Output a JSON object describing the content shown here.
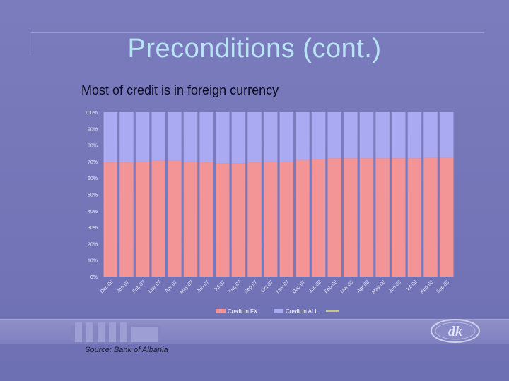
{
  "slide": {
    "title": "Preconditions (cont.)",
    "subtitle": "Most of credit is in foreign currency",
    "source": "Source: Bank of Albania"
  },
  "colors": {
    "fx": "#f39496",
    "all": "#aaaaf2",
    "title": "#b9e4f5",
    "background": "#7778ba"
  },
  "chart_data": {
    "type": "bar",
    "stacked": true,
    "percent_stacked": true,
    "categories": [
      "Dec-06",
      "Jan-07",
      "Feb-07",
      "Mar-07",
      "Apr-07",
      "May-07",
      "Jun-07",
      "Jul-07",
      "Aug-07",
      "Sep-07",
      "Oct-07",
      "Nov-07",
      "Dec-07",
      "Jan-08",
      "Feb-08",
      "Mar-08",
      "Apr-08",
      "May-08",
      "Jun-08",
      "Jul-08",
      "Aug-08",
      "Sep-08"
    ],
    "series": [
      {
        "name": "Credit in FX",
        "color": "#f39496",
        "values": [
          69.5,
          69.5,
          70,
          70.5,
          70.5,
          70,
          69.5,
          69,
          69,
          69.5,
          70,
          70,
          71,
          71.5,
          72,
          72,
          72,
          72,
          72,
          72,
          72.5,
          72.5
        ]
      },
      {
        "name": "Credit in ALL",
        "color": "#aaaaf2",
        "values": [
          30.5,
          30.5,
          30,
          29.5,
          29.5,
          30,
          30.5,
          31,
          31,
          30.5,
          30,
          30,
          29,
          28.5,
          28,
          28,
          28,
          28,
          28,
          28,
          27.5,
          27.5
        ]
      }
    ],
    "yticks": [
      "0%",
      "10%",
      "20%",
      "30%",
      "40%",
      "50%",
      "60%",
      "70%",
      "80%",
      "90%",
      "100%"
    ],
    "ylim": [
      0,
      100
    ],
    "grid": false,
    "legend": "bottom"
  }
}
